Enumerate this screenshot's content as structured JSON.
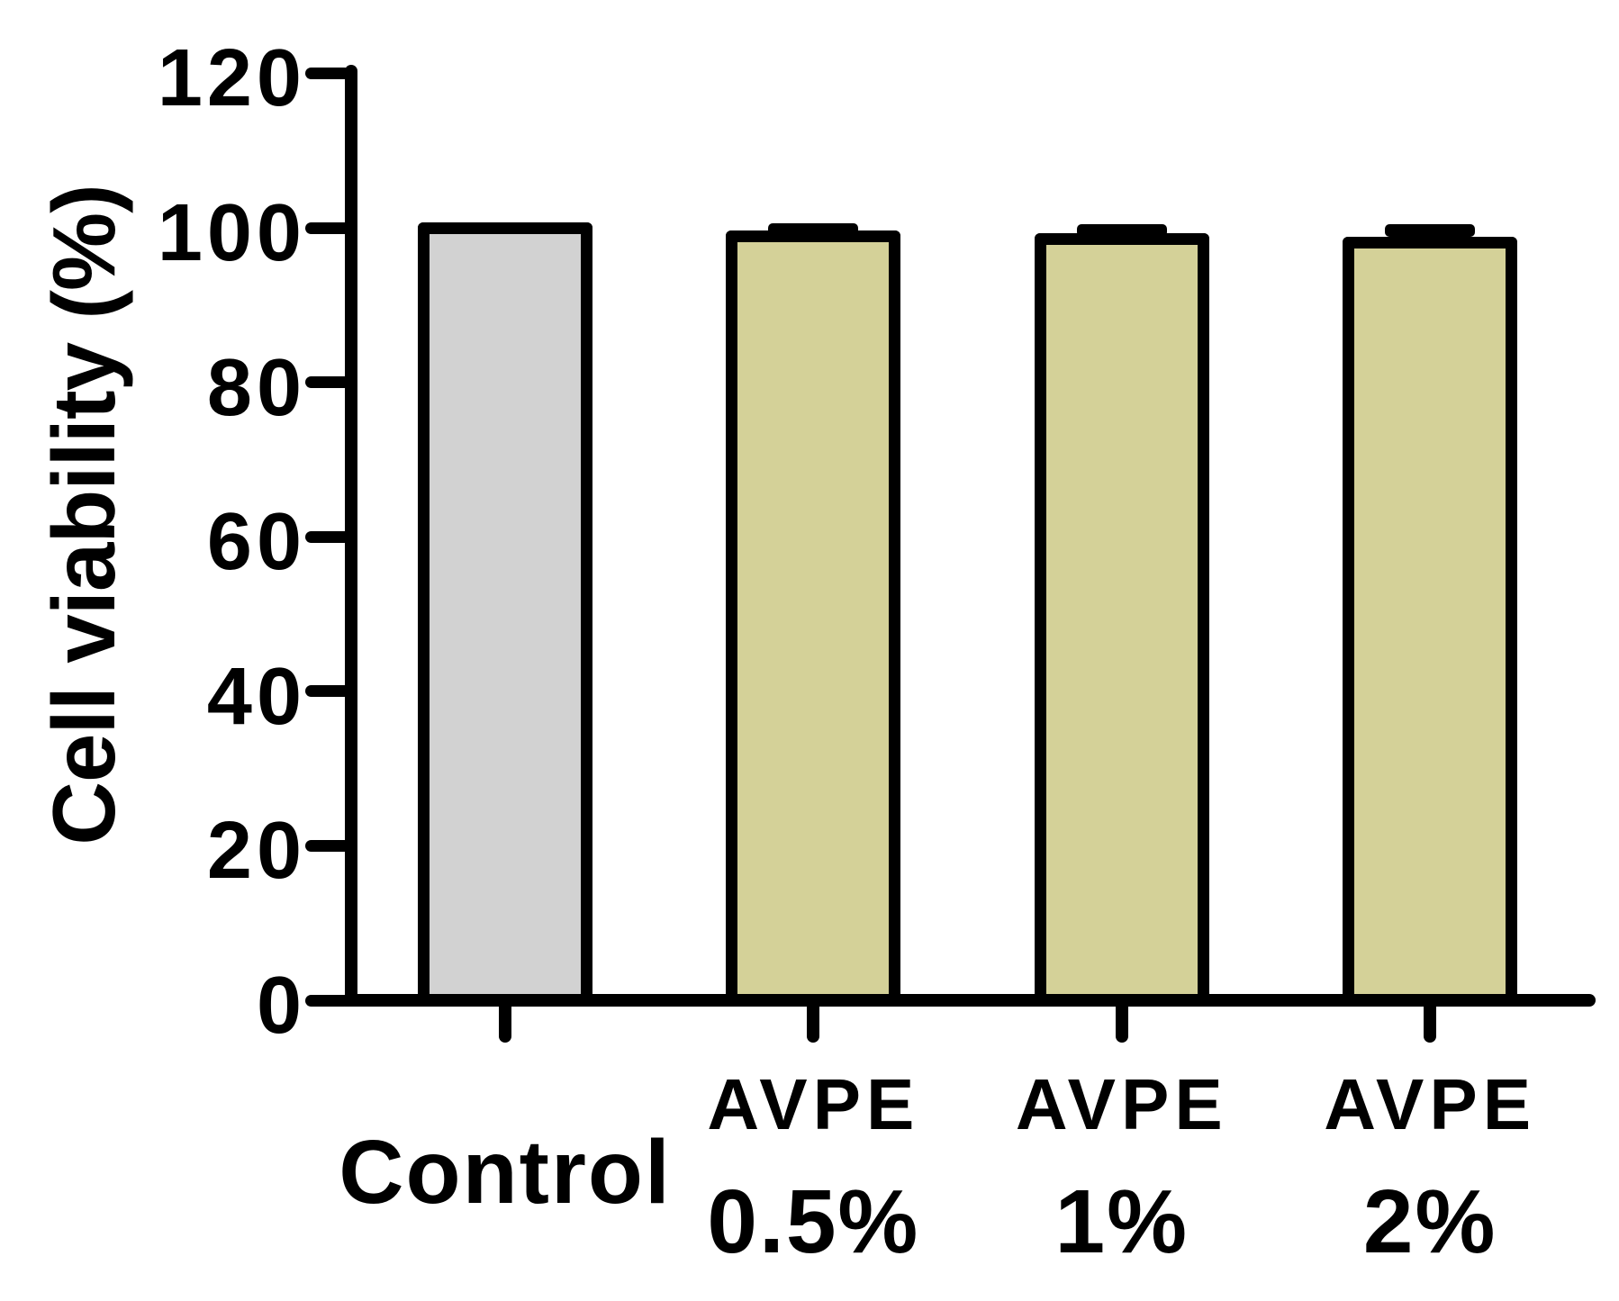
{
  "chart_data": {
    "type": "bar",
    "title": "",
    "ylabel": "Cell viability (%)",
    "xlabel": "",
    "ylim": [
      0,
      120
    ],
    "yticks": [
      0,
      20,
      40,
      60,
      80,
      100,
      120
    ],
    "grid": false,
    "legend_position": "none",
    "categories": [
      {
        "lines": [
          "Control"
        ]
      },
      {
        "lines": [
          "AVPE",
          "0.5%"
        ]
      },
      {
        "lines": [
          "AVPE",
          "1%"
        ]
      },
      {
        "lines": [
          "AVPE",
          "2%"
        ]
      }
    ],
    "series": [
      {
        "name": "Cell viability",
        "values": [
          100,
          98.9,
          98.5,
          98.1
        ],
        "errors_plus": [
          0,
          0.9,
          1.2,
          1.5
        ]
      }
    ],
    "colors": {
      "background": "#ffffff",
      "axis": "#000000",
      "text": "#000000",
      "bar_border": "#000000",
      "bar_fills": [
        "#d2d2d2",
        "#d4d198",
        "#d4d198",
        "#d4d198"
      ]
    }
  }
}
